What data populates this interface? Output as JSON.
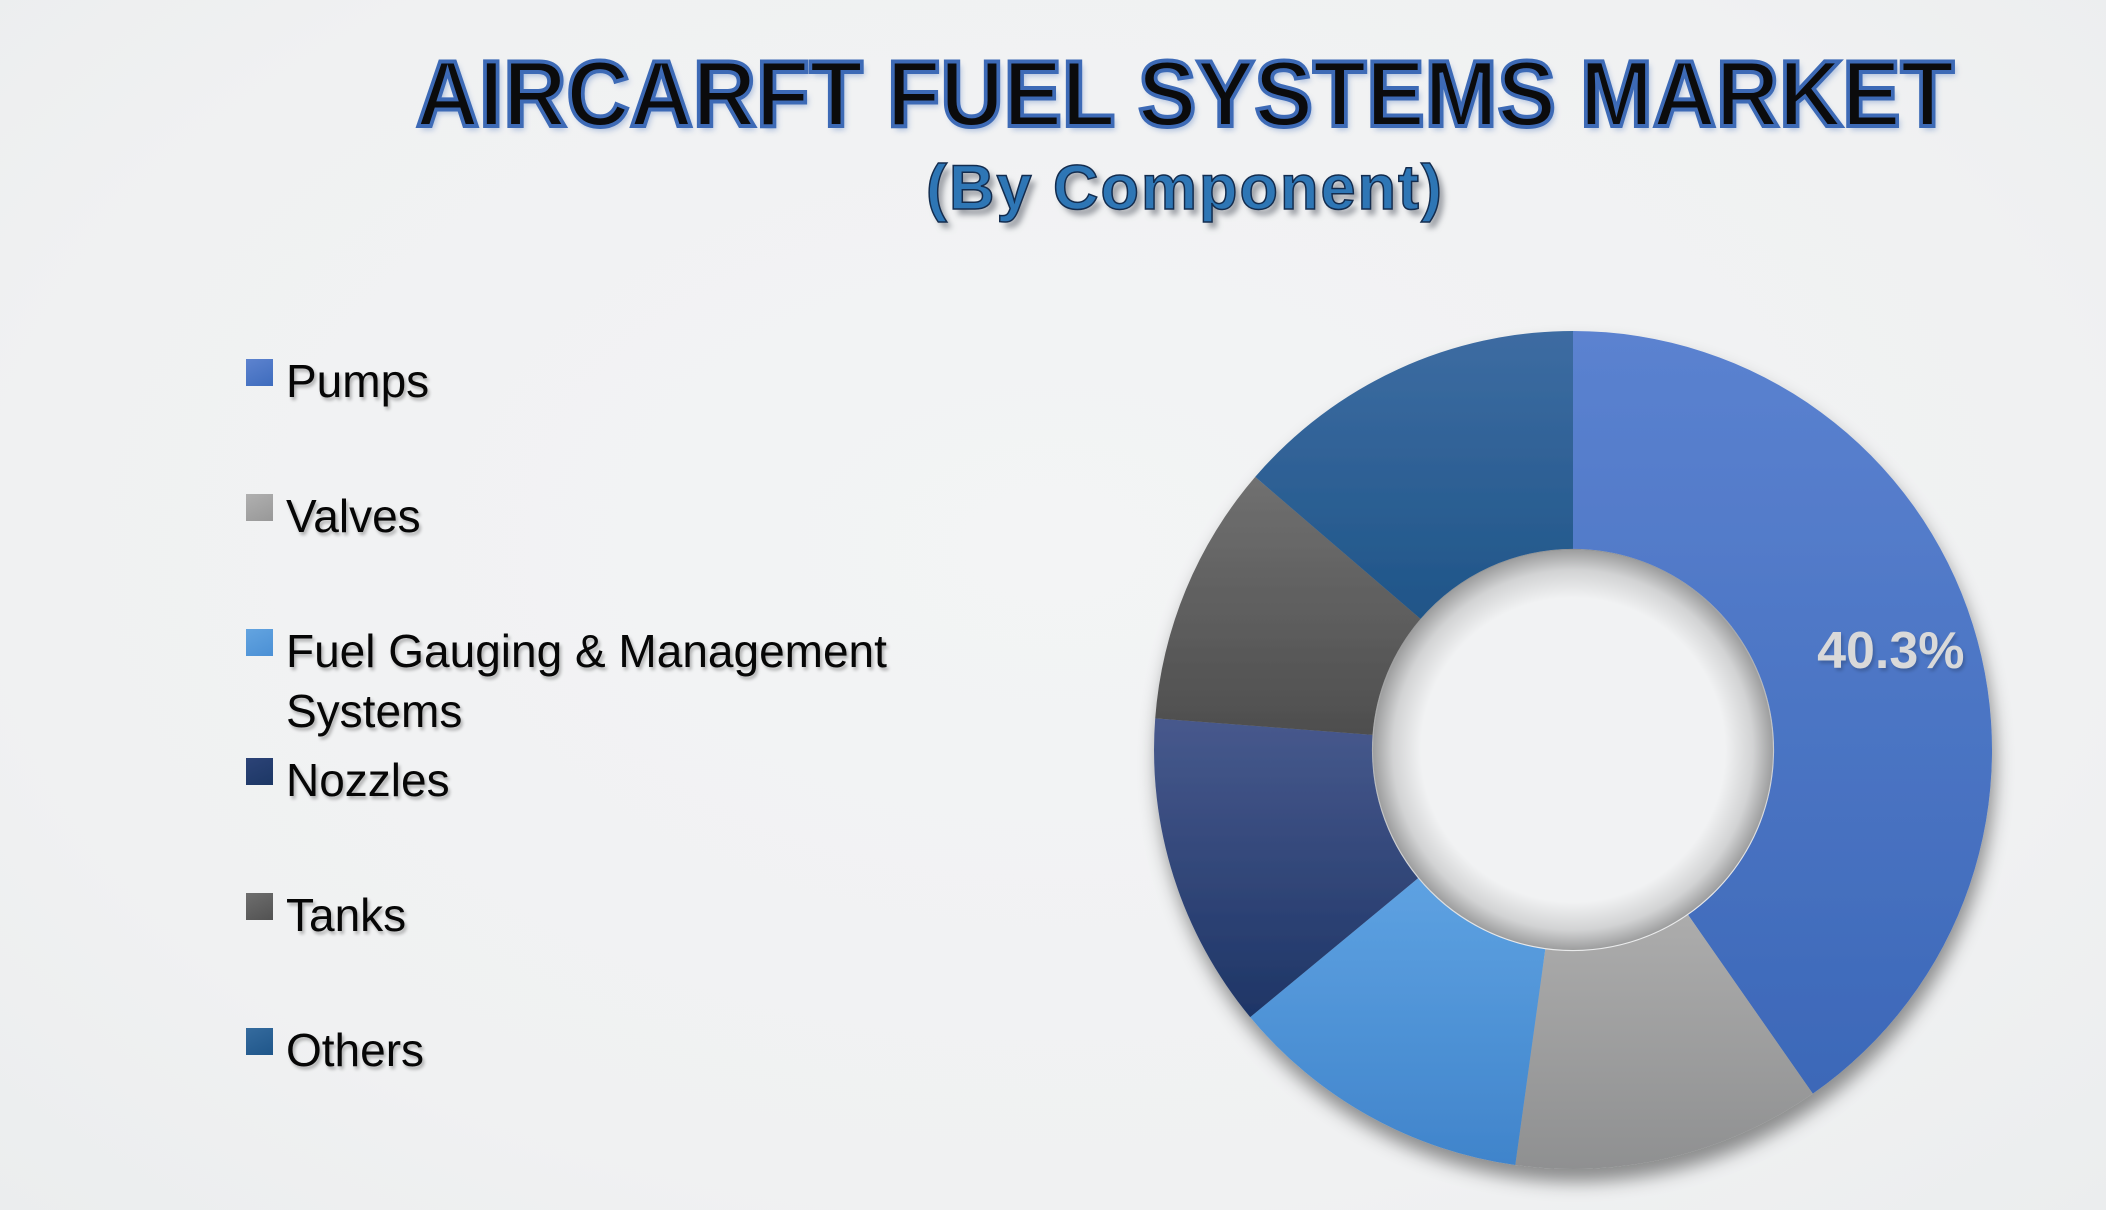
{
  "header": {
    "title": "AIRCARFT FUEL SYSTEMS MARKET",
    "subtitle": "(By Component)",
    "title_color": "#0b0b0c",
    "title_outline_color": "#3d6ab6",
    "subtitle_color": "#2e76b5"
  },
  "chart_data": {
    "type": "pie",
    "variant": "donut",
    "title": "AIRCARFT FUEL SYSTEMS MARKET",
    "subtitle": "(By Component)",
    "legend_position": "left",
    "hole_ratio": 0.48,
    "start_angle_deg": 0,
    "direction": "clockwise",
    "label_color": "#d9d9d9",
    "background_color": "#f0f1f2",
    "series": [
      {
        "name": "Pumps",
        "value": 40.3,
        "label": "40.3%",
        "color_top": "#5b82d0",
        "color_bottom": "#3c68b8",
        "legend_top": "#5d83cf",
        "legend_bottom": "#3e6cbd"
      },
      {
        "name": "Valves",
        "value": 11.9,
        "label": "",
        "color_top": "#acacac",
        "color_bottom": "#8f9091",
        "legend_top": "#b0b0b0",
        "legend_bottom": "#989898"
      },
      {
        "name": "Fuel Gauging & Management Systems",
        "value": 11.8,
        "label": "",
        "color_top": "#5ea2e2",
        "color_bottom": "#4084cb",
        "legend_top": "#63a4e0",
        "legend_bottom": "#4b90d5"
      },
      {
        "name": "Nozzles",
        "value": 12.2,
        "label": "",
        "color_top": "#47598d",
        "color_bottom": "#1e3566",
        "legend_top": "#2c4377",
        "legend_bottom": "#1c3765"
      },
      {
        "name": "Tanks",
        "value": 10.1,
        "label": "",
        "color_top": "#707070",
        "color_bottom": "#4e4e4e",
        "legend_top": "#6e6e6e",
        "legend_bottom": "#525252"
      },
      {
        "name": "Others",
        "value": 13.7,
        "label": "",
        "color_top": "#3d6ca2",
        "color_bottom": "#1f5588",
        "legend_top": "#356b9e",
        "legend_bottom": "#1f568a"
      }
    ]
  }
}
